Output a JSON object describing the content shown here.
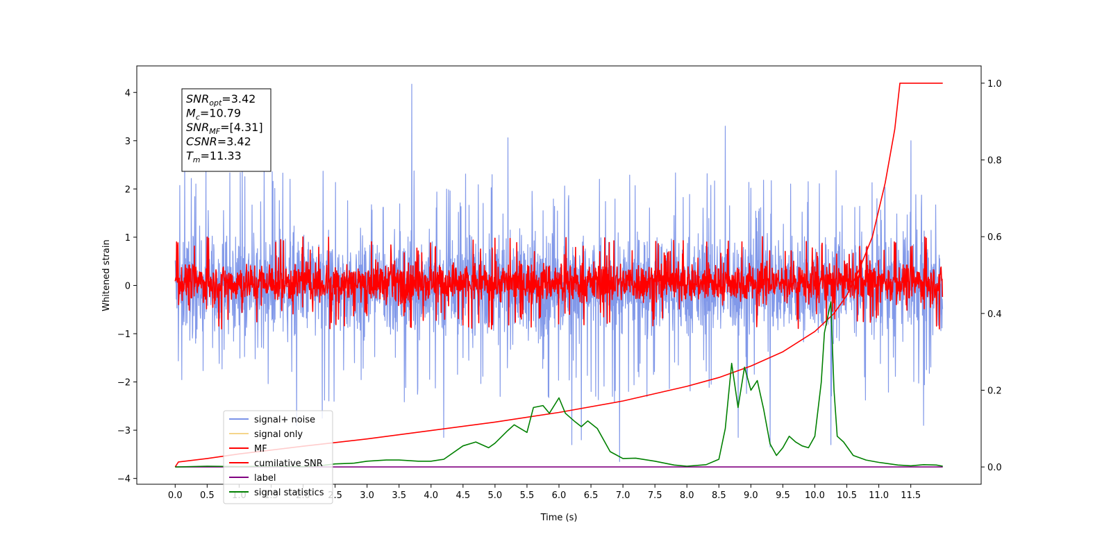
{
  "chart_data": {
    "type": "line",
    "xlabel": "Time (s)",
    "ylabel": "Whitened strain",
    "xlim": [
      -0.6,
      12.6
    ],
    "ylim": [
      -4.12,
      4.55
    ],
    "y2lim": [
      -0.045,
      1.045
    ],
    "x_ticks": [
      0.0,
      0.5,
      1.0,
      1.5,
      2.0,
      2.5,
      3.0,
      3.5,
      4.0,
      4.5,
      5.0,
      5.5,
      6.0,
      6.5,
      7.0,
      7.5,
      8.0,
      8.5,
      9.0,
      9.5,
      10.0,
      10.5,
      11.0,
      11.5
    ],
    "x_tick_labels": [
      "0.0",
      "0.5",
      "1.0",
      "1.5",
      "2.0",
      "2.5",
      "3.0",
      "3.5",
      "4.0",
      "4.5",
      "5.0",
      "5.5",
      "6.0",
      "6.5",
      "7.0",
      "7.5",
      "8.0",
      "8.5",
      "9.0",
      "9.5",
      "10.0",
      "10.5",
      "11.0",
      "11.5"
    ],
    "y_ticks": [
      4,
      3,
      2,
      1,
      0,
      -1,
      -2,
      -3,
      -4
    ],
    "y_tick_labels": [
      "4",
      "3",
      "2",
      "1",
      "0",
      "−1",
      "−2",
      "−3",
      "−4"
    ],
    "y2_ticks": [
      1.0,
      0.8,
      0.6,
      0.4,
      0.2,
      0.0
    ],
    "y2_tick_labels": [
      "1.0",
      "0.8",
      "0.6",
      "0.4",
      "0.2",
      "0.0"
    ],
    "grid": false,
    "legend_position": "lower-left",
    "legend": [
      {
        "label": "signal+ noise",
        "color": "#7b93e8"
      },
      {
        "label": "signal only",
        "color": "#f5d58a"
      },
      {
        "label": "MF",
        "color": "#ff0000"
      },
      {
        "label": "cumilative SNR",
        "color": "#ff0000"
      },
      {
        "label": "label",
        "color": "#800080"
      },
      {
        "label": "signal statistics",
        "color": "#008000"
      }
    ],
    "series": [
      {
        "name": "signal+ noise",
        "axis": "left",
        "color": "#7b93e8",
        "x_range": [
          0.0,
          12.0
        ],
        "pattern": "dense noise",
        "band": [
          -1.1,
          1.1
        ],
        "peaks": [
          [
            3.7,
            4.17
          ],
          [
            8.6,
            3.3
          ],
          [
            5.2,
            3.06
          ],
          [
            11.5,
            3.0
          ],
          [
            0.15,
            2.5
          ],
          [
            6.95,
            -3.65
          ],
          [
            4.2,
            -3.15
          ],
          [
            6.2,
            -3.3
          ],
          [
            6.35,
            -3.2
          ],
          [
            8.8,
            -3.15
          ],
          [
            9.3,
            -3.35
          ],
          [
            10.25,
            -3.3
          ],
          [
            11.7,
            -2.9
          ],
          [
            1.9,
            -2.9
          ],
          [
            2.3,
            -2.75
          ]
        ]
      },
      {
        "name": "MF",
        "axis": "left",
        "color": "#ff0000",
        "x_range": [
          0.0,
          12.0
        ],
        "pattern": "dense noise",
        "band": [
          -0.38,
          0.5
        ],
        "peaks": [
          [
            1.65,
            0.95
          ],
          [
            2.4,
            1.0
          ],
          [
            5.0,
            0.98
          ],
          [
            11.5,
            0.8
          ]
        ]
      },
      {
        "name": "cumilative SNR",
        "axis": "right",
        "color": "#ff0000",
        "x": [
          0.0,
          0.05,
          0.5,
          1.0,
          2.0,
          3.0,
          4.0,
          5.0,
          6.0,
          7.0,
          8.0,
          8.5,
          9.0,
          9.5,
          10.0,
          10.3,
          10.5,
          10.7,
          10.9,
          11.1,
          11.25,
          11.33,
          12.0
        ],
        "values": [
          0.0,
          0.013,
          0.022,
          0.034,
          0.054,
          0.073,
          0.095,
          0.117,
          0.142,
          0.172,
          0.21,
          0.233,
          0.263,
          0.3,
          0.353,
          0.4,
          0.447,
          0.517,
          0.6,
          0.74,
          0.88,
          1.0,
          1.0
        ]
      },
      {
        "name": "label",
        "axis": "right",
        "color": "#800080",
        "x": [
          0.0,
          12.0
        ],
        "values": [
          0.0,
          0.0
        ]
      },
      {
        "name": "signal statistics",
        "axis": "right",
        "color": "#008000",
        "x": [
          0.0,
          0.5,
          1.0,
          1.5,
          2.0,
          2.3,
          2.5,
          2.8,
          3.0,
          3.3,
          3.5,
          3.8,
          4.0,
          4.2,
          4.5,
          4.7,
          4.9,
          5.0,
          5.2,
          5.3,
          5.5,
          5.6,
          5.75,
          5.85,
          6.0,
          6.1,
          6.25,
          6.35,
          6.45,
          6.6,
          6.8,
          7.0,
          7.2,
          7.5,
          7.8,
          8.0,
          8.3,
          8.5,
          8.6,
          8.7,
          8.8,
          8.9,
          9.0,
          9.1,
          9.2,
          9.3,
          9.4,
          9.5,
          9.6,
          9.7,
          9.8,
          9.9,
          10.0,
          10.1,
          10.15,
          10.25,
          10.3,
          10.35,
          10.45,
          10.6,
          10.8,
          11.0,
          11.3,
          11.5,
          11.7,
          11.9,
          12.0
        ],
        "values": [
          0.0,
          0.002,
          0.001,
          0.002,
          0.001,
          0.004,
          0.008,
          0.01,
          0.015,
          0.018,
          0.018,
          0.015,
          0.015,
          0.02,
          0.055,
          0.065,
          0.05,
          0.062,
          0.095,
          0.11,
          0.09,
          0.155,
          0.16,
          0.14,
          0.18,
          0.14,
          0.118,
          0.105,
          0.12,
          0.1,
          0.04,
          0.022,
          0.023,
          0.015,
          0.005,
          0.002,
          0.006,
          0.02,
          0.1,
          0.27,
          0.155,
          0.26,
          0.2,
          0.225,
          0.15,
          0.06,
          0.03,
          0.05,
          0.08,
          0.065,
          0.055,
          0.05,
          0.08,
          0.22,
          0.35,
          0.43,
          0.2,
          0.08,
          0.065,
          0.03,
          0.018,
          0.012,
          0.005,
          0.003,
          0.006,
          0.005,
          0.002
        ]
      }
    ],
    "annotation_box": [
      {
        "sym": "SNR",
        "sub": "opt",
        "rest": "=3.42"
      },
      {
        "sym": "M",
        "sub": "c",
        "rest": "=10.79"
      },
      {
        "sym": "SNR",
        "sub": "MF",
        "rest": "=[4.31]"
      },
      {
        "sym": "CSNR",
        "sub": "",
        "rest": "=3.42"
      },
      {
        "sym": "T",
        "sub": "m",
        "rest": "=11.33"
      }
    ]
  }
}
